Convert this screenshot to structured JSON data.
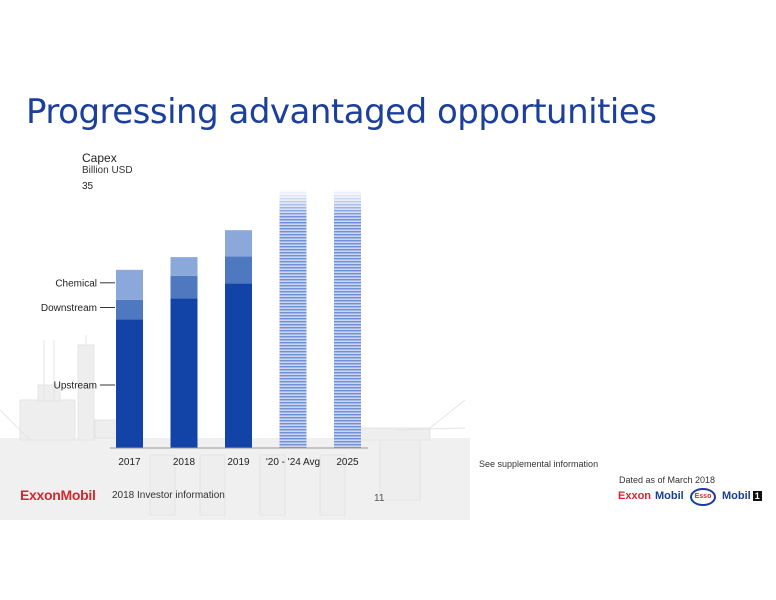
{
  "title": "Progressing advantaged opportunities",
  "footer": {
    "logo": "ExxonMobil",
    "text": "2018 Investor information",
    "page_number": "11",
    "supplemental": "See supplemental information",
    "dated": "Dated as of March 2018",
    "brands": {
      "exxon": "Exxon",
      "mobil": "Mobil",
      "esso": "Esso",
      "mobil1": "Mobil",
      "mobil1_number": "1"
    }
  },
  "colors": {
    "upstream": "#1144a6",
    "downstream": "#4e78c0",
    "chemical": "#8aa8da",
    "projection": "#6f8fd8",
    "title": "#1b3f9a"
  },
  "icons": {
    "background": "offshore-platform-illustration"
  },
  "chart_data": {
    "type": "bar",
    "stacked": true,
    "ylabel": "Capex",
    "yunit": "Billion USD",
    "ylim": [
      0,
      35
    ],
    "yticks": [
      "0",
      "35"
    ],
    "categories": [
      "2017",
      "2018",
      "2019",
      "'20 - '24 Avg",
      "2025"
    ],
    "series": [
      {
        "name": "Upstream",
        "values": [
          17.2,
          20.0,
          22.0,
          null,
          null
        ]
      },
      {
        "name": "Downstream",
        "values": [
          2.6,
          3.0,
          3.6,
          null,
          null
        ]
      },
      {
        "name": "Chemical",
        "values": [
          4.0,
          2.5,
          3.5,
          null,
          null
        ]
      }
    ],
    "projection_totals": [
      null,
      null,
      null,
      34.5,
      34.5
    ],
    "series_labels": [
      "Chemical",
      "Downstream",
      "Upstream"
    ]
  }
}
